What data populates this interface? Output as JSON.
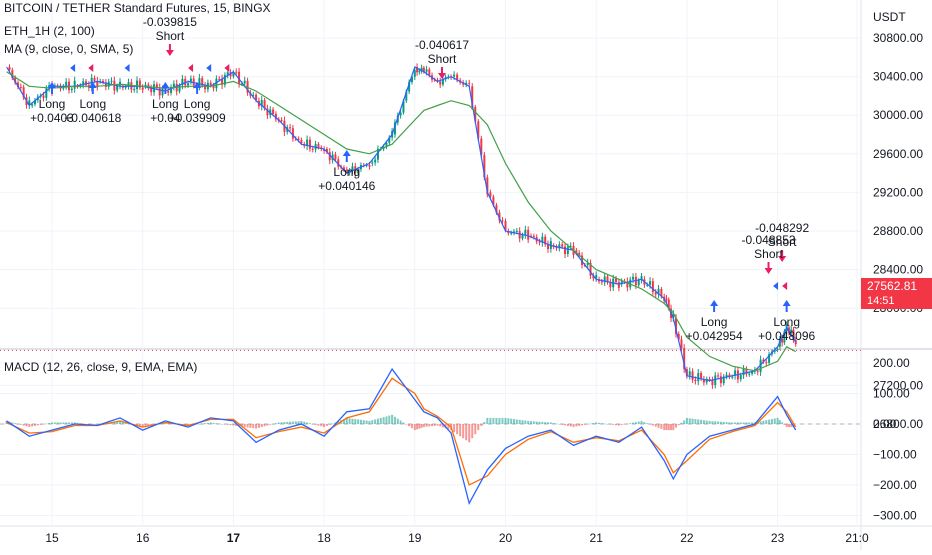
{
  "header": {
    "symbol_line": "BITCOIN / TETHER Standard Futures, 15, BINGX",
    "indicator_line": "ETH_1H (2, 100)",
    "ma_line": "MA (9, close, 0, SMA, 5)",
    "macd_line": "MACD (12, 26, close, 9, EMA, EMA)"
  },
  "price_axis": {
    "unit": "USDT",
    "ticks": [
      "30800.00",
      "30400.00",
      "30000.00",
      "29600.00",
      "29200.00",
      "28800.00",
      "28400.00",
      "28000.00",
      "27200.00",
      "26800.00"
    ],
    "last_price": "27562.81",
    "countdown": "14:51"
  },
  "macd_axis": {
    "ticks": [
      "200.00",
      "100.00",
      "0.00",
      "−100.00",
      "−200.00",
      "−300.00"
    ]
  },
  "time_axis": {
    "ticks": [
      "15",
      "16",
      "17",
      "18",
      "19",
      "20",
      "21",
      "22",
      "23",
      "21:0"
    ]
  },
  "signals": [
    {
      "type": "Short",
      "label": "Short",
      "value": "-0.040617"
    },
    {
      "type": "Long",
      "label": "Long",
      "value": "+0.040146"
    },
    {
      "type": "Long",
      "label": "Long",
      "value": "+0.040618"
    },
    {
      "type": "Long",
      "label": "Long",
      "value": "+0.0403"
    },
    {
      "type": "Long",
      "label": "Long",
      "value": "+0.04"
    },
    {
      "type": "Long",
      "label": "Long",
      "value": "+0.039909"
    },
    {
      "type": "Short",
      "label": "Short",
      "value": "-0.039815"
    },
    {
      "type": "Short",
      "label": "Short",
      "value": "-0.048292"
    },
    {
      "type": "Short",
      "label": "Short",
      "value": "-0.048853"
    },
    {
      "type": "Long",
      "label": "Long",
      "value": "+0.042954"
    },
    {
      "type": "Long",
      "label": "Long",
      "value": "+0.048096"
    }
  ],
  "colors": {
    "up": "#089981",
    "down": "#f23645",
    "ma": "#43a047",
    "price_line": "#2962ff",
    "macd": "#2962ff",
    "signal": "#ff6d00",
    "hist_pos": "#26a69a",
    "hist_neg": "#ef5350",
    "long_arrow": "#2962ff",
    "short_arrow": "#e91e63"
  },
  "chart_data": [
    {
      "type": "line",
      "title": "BITCOIN / TETHER Standard Futures, 15, BINGX",
      "x": [
        "14.5",
        "14.75",
        "15",
        "15.25",
        "15.5",
        "15.75",
        "16",
        "16.25",
        "16.5",
        "16.75",
        "17",
        "17.25",
        "17.5",
        "17.75",
        "18",
        "18.25",
        "18.5",
        "18.75",
        "19",
        "19.1",
        "19.25",
        "19.4",
        "19.6",
        "19.8",
        "20",
        "20.25",
        "20.5",
        "20.75",
        "21",
        "21.25",
        "21.5",
        "21.75",
        "21.85",
        "22",
        "22.25",
        "22.5",
        "22.75",
        "23",
        "23.1",
        "23.2"
      ],
      "series": [
        {
          "values": [
            30500,
            30100,
            30300,
            30300,
            30350,
            30300,
            30300,
            30250,
            30350,
            30300,
            30450,
            30150,
            29950,
            29700,
            29650,
            29400,
            29500,
            29800,
            30500,
            30450,
            30350,
            30400,
            30300,
            29200,
            28800,
            28750,
            28650,
            28600,
            28300,
            28250,
            28300,
            28100,
            27900,
            27300,
            27250,
            27300,
            27350,
            27600,
            27800,
            27650
          ]
        },
        {
          "values": [
            30450,
            30300,
            30280,
            30300,
            30300,
            30320,
            30300,
            30280,
            30300,
            30300,
            30350,
            30250,
            30100,
            29950,
            29800,
            29650,
            29600,
            29700,
            29950,
            30050,
            30100,
            30150,
            30100,
            29900,
            29500,
            29100,
            28800,
            28600,
            28400,
            28300,
            28200,
            28050,
            27950,
            27700,
            27500,
            27400,
            27350,
            27450,
            27600,
            27550
          ]
        }
      ],
      "ylim": [
        26800,
        31000
      ],
      "grid": true
    },
    {
      "type": "line",
      "title": "MACD (12, 26, close, 9, EMA, EMA)",
      "x": [
        "14.5",
        "14.75",
        "15",
        "15.25",
        "15.5",
        "15.75",
        "16",
        "16.25",
        "16.5",
        "16.75",
        "17",
        "17.25",
        "17.5",
        "17.75",
        "18",
        "18.25",
        "18.5",
        "18.75",
        "19",
        "19.1",
        "19.25",
        "19.4",
        "19.6",
        "19.8",
        "20",
        "20.25",
        "20.5",
        "20.75",
        "21",
        "21.25",
        "21.5",
        "21.75",
        "21.85",
        "22",
        "22.25",
        "22.5",
        "22.75",
        "23",
        "23.1",
        "23.2"
      ],
      "series": [
        {
          "values": [
            10,
            -40,
            -20,
            0,
            -5,
            20,
            -20,
            10,
            -10,
            20,
            10,
            -60,
            -20,
            0,
            -40,
            40,
            50,
            180,
            80,
            40,
            20,
            -30,
            -260,
            -150,
            -80,
            -40,
            -20,
            -70,
            -40,
            -60,
            -10,
            -120,
            -180,
            -100,
            -40,
            -20,
            0,
            90,
            30,
            -20
          ]
        },
        {
          "values": [
            5,
            -30,
            -25,
            -5,
            -5,
            10,
            -10,
            5,
            -5,
            15,
            15,
            -45,
            -25,
            -10,
            -30,
            20,
            40,
            150,
            100,
            50,
            25,
            -10,
            -200,
            -170,
            -100,
            -50,
            -25,
            -60,
            -45,
            -55,
            -20,
            -100,
            -160,
            -120,
            -50,
            -25,
            -5,
            70,
            40,
            -10
          ]
        },
        {
          "values": [
            10,
            -10,
            5,
            5,
            -5,
            10,
            -10,
            5,
            -5,
            5,
            -5,
            -15,
            5,
            10,
            -10,
            20,
            10,
            30,
            -20,
            -10,
            -5,
            -20,
            -60,
            20,
            20,
            10,
            5,
            -10,
            5,
            -5,
            10,
            -20,
            -20,
            20,
            10,
            5,
            5,
            20,
            -10,
            -10
          ]
        }
      ],
      "ylim": [
        -320,
        220
      ],
      "grid": true
    }
  ]
}
